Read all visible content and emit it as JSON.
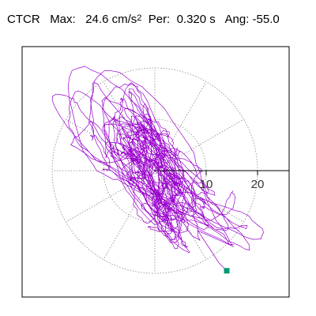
{
  "header": {
    "station": "CTCR",
    "max_label": "Max:",
    "max_value": "24.6 cm/s",
    "max_unit_exp": "2",
    "per_label": "Per:",
    "per_value": "0.320 s",
    "ang_label": "Ang:",
    "ang_value": "-55.0"
  },
  "chart_data": {
    "type": "line",
    "title": "CTCR  Max: 24.6 cm/s^2  Per: 0.320 s  Ang: -55.0",
    "polar_grid": {
      "rings": [
        10,
        20
      ],
      "ring_labels": [
        "10",
        "20"
      ],
      "spoke_step_deg": 30,
      "style": "dotted gray"
    },
    "max_amplitude": 24.6,
    "period_s": 0.32,
    "angle_deg": -55.0,
    "trace_color": "#9900cc",
    "marker_color": "#009977",
    "marker_point": [
      14,
      -19.5
    ]
  }
}
